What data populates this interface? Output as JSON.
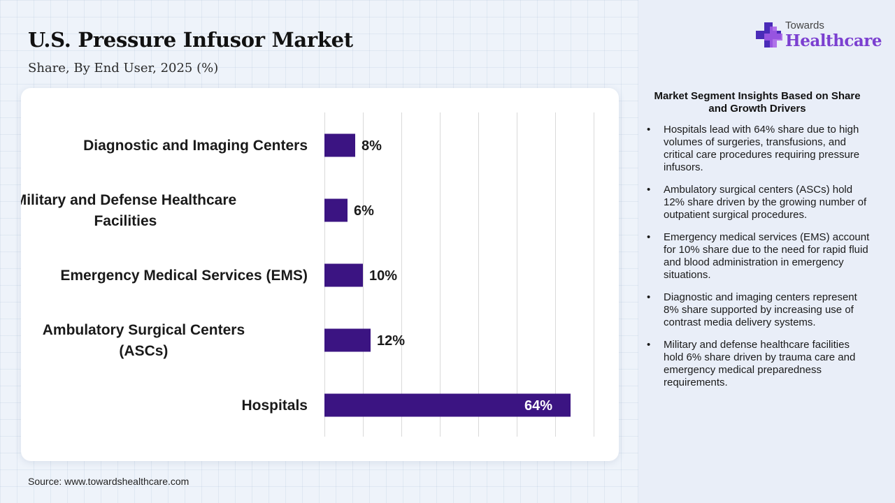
{
  "header": {
    "title": "U.S. Pressure Infusor Market",
    "subtitle": "Share, By End User, 2025 (%)"
  },
  "brand": {
    "name_top": "Towards",
    "name_main": "Healthcare",
    "icon": "medical-cross-icon",
    "colors": {
      "primary": "#7b3fd0",
      "secondary": "#4a2bb8"
    }
  },
  "chart_data": {
    "type": "bar",
    "orientation": "horizontal",
    "categories": [
      [
        "Diagnostic and Imaging Centers"
      ],
      [
        "Military and Defense Healthcare",
        "Facilities"
      ],
      [
        "Emergency Medical Services (EMS)"
      ],
      [
        "Ambulatory Surgical Centers",
        "(ASCs)"
      ],
      [
        "Hospitals"
      ]
    ],
    "values": [
      8,
      6,
      10,
      12,
      64
    ],
    "value_labels": [
      "8%",
      "6%",
      "10%",
      "12%",
      "64%"
    ],
    "xlim": [
      0,
      70
    ],
    "grid": true,
    "bar_color": "#3b1482"
  },
  "insights": {
    "title": "Market Segment Insights Based on Share and Growth Drivers",
    "bullet": "•",
    "items": [
      "Hospitals lead with 64% share due to high volumes of surgeries, transfusions, and critical care procedures requiring pressure infusors.",
      "Ambulatory surgical centers (ASCs) hold 12% share driven by the growing number of outpatient surgical procedures.",
      "Emergency medical services (EMS) account for 10% share due to the need for rapid fluid and blood administration in emergency situations.",
      "Diagnostic and imaging centers represent 8% share supported by increasing use of contrast media delivery systems.",
      "Military and defense healthcare facilities hold 6% share driven by trauma care and emergency medical preparedness requirements."
    ]
  },
  "footer": {
    "source": "Source: www.towardshealthcare.com"
  }
}
